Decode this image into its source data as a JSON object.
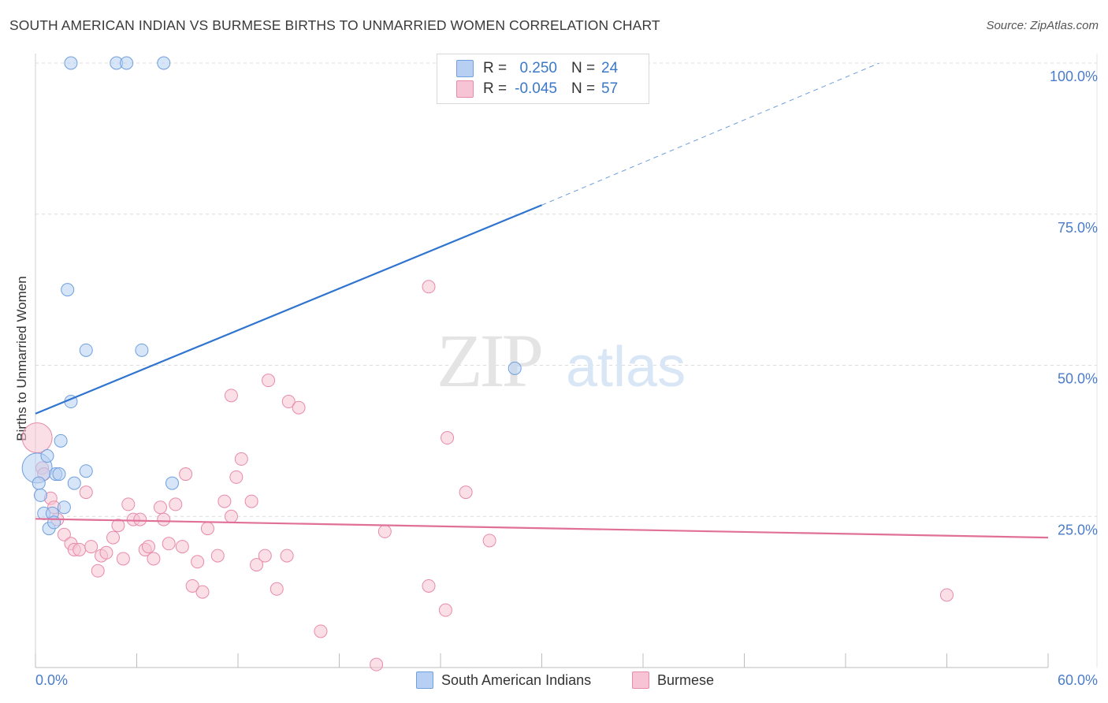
{
  "header": {
    "title": "SOUTH AMERICAN INDIAN VS BURMESE BIRTHS TO UNMARRIED WOMEN CORRELATION CHART",
    "source": "Source: ZipAtlas.com"
  },
  "watermark": {
    "zip": "ZIP",
    "atlas": "atlas"
  },
  "colors": {
    "blue_fill": "#b6cff2",
    "blue_stroke": "#6f9fde",
    "blue_line": "#2f74cf",
    "pink_fill": "#f6c4d4",
    "pink_stroke": "#e88aaa",
    "pink_line": "#e07098",
    "tick_label": "#4a7cc9",
    "grid": "#dcdcdc"
  },
  "legend_top": {
    "rows": [
      {
        "series": "South American Indians",
        "r_label": "R =",
        "r_value": "0.250",
        "n_label": "N =",
        "n_value": "24"
      },
      {
        "series": "Burmese",
        "r_label": "R =",
        "r_value": "-0.045",
        "n_label": "N =",
        "n_value": "57"
      }
    ]
  },
  "legend_bottom": {
    "items": [
      "South American Indians",
      "Burmese"
    ]
  },
  "chart_data": {
    "type": "scatter",
    "title": "SOUTH AMERICAN INDIAN VS BURMESE BIRTHS TO UNMARRIED WOMEN CORRELATION CHART",
    "xlabel": "",
    "ylabel": "Births to Unmarried Women",
    "xlim": [
      0,
      60
    ],
    "ylim": [
      0,
      100
    ],
    "x_tick_labels": [
      "0.0%",
      "60.0%"
    ],
    "y_tick_labels": [
      "25.0%",
      "50.0%",
      "75.0%",
      "100.0%"
    ],
    "y_ticks": [
      25,
      50,
      75,
      100
    ],
    "grid": true,
    "series": [
      {
        "name": "South American Indians",
        "points": [
          {
            "x": 0.1,
            "y": 33.0,
            "big": true
          },
          {
            "x": 0.2,
            "y": 30.5
          },
          {
            "x": 0.3,
            "y": 28.5
          },
          {
            "x": 0.5,
            "y": 25.5
          },
          {
            "x": 0.7,
            "y": 35.0
          },
          {
            "x": 0.8,
            "y": 23.0
          },
          {
            "x": 1.0,
            "y": 25.5
          },
          {
            "x": 1.1,
            "y": 24.0
          },
          {
            "x": 1.2,
            "y": 32.0
          },
          {
            "x": 1.4,
            "y": 32.0
          },
          {
            "x": 1.5,
            "y": 37.5
          },
          {
            "x": 1.7,
            "y": 26.5
          },
          {
            "x": 1.9,
            "y": 62.5
          },
          {
            "x": 2.1,
            "y": 44.0
          },
          {
            "x": 2.1,
            "y": 100.0
          },
          {
            "x": 2.3,
            "y": 30.5
          },
          {
            "x": 3.0,
            "y": 52.5
          },
          {
            "x": 3.0,
            "y": 32.5
          },
          {
            "x": 4.8,
            "y": 100.0
          },
          {
            "x": 5.4,
            "y": 100.0
          },
          {
            "x": 6.3,
            "y": 52.5
          },
          {
            "x": 7.6,
            "y": 100.0
          },
          {
            "x": 8.1,
            "y": 30.5
          },
          {
            "x": 28.4,
            "y": 49.5
          }
        ],
        "trend": {
          "x0": 0,
          "y0": 42.0,
          "x1": 30,
          "y1": 76.5,
          "dash_to_x": 50,
          "dash_to_y": 100
        }
      },
      {
        "name": "Burmese",
        "points": [
          {
            "x": 0.1,
            "y": 38.0,
            "big": true
          },
          {
            "x": 0.4,
            "y": 33.0
          },
          {
            "x": 0.5,
            "y": 32.0
          },
          {
            "x": 0.9,
            "y": 28.0
          },
          {
            "x": 1.1,
            "y": 26.5
          },
          {
            "x": 1.3,
            "y": 24.5
          },
          {
            "x": 1.7,
            "y": 22.0
          },
          {
            "x": 2.1,
            "y": 20.5
          },
          {
            "x": 2.3,
            "y": 19.5
          },
          {
            "x": 2.6,
            "y": 19.5
          },
          {
            "x": 3.0,
            "y": 29.0
          },
          {
            "x": 3.3,
            "y": 20.0
          },
          {
            "x": 3.7,
            "y": 16.0
          },
          {
            "x": 3.9,
            "y": 18.5
          },
          {
            "x": 4.2,
            "y": 19.0
          },
          {
            "x": 4.6,
            "y": 21.5
          },
          {
            "x": 4.9,
            "y": 23.5
          },
          {
            "x": 5.2,
            "y": 18.0
          },
          {
            "x": 5.5,
            "y": 27.0
          },
          {
            "x": 5.8,
            "y": 24.5
          },
          {
            "x": 6.2,
            "y": 24.5
          },
          {
            "x": 6.5,
            "y": 19.5
          },
          {
            "x": 6.7,
            "y": 20.0
          },
          {
            "x": 7.0,
            "y": 18.0
          },
          {
            "x": 7.4,
            "y": 26.5
          },
          {
            "x": 7.6,
            "y": 24.5
          },
          {
            "x": 7.9,
            "y": 20.5
          },
          {
            "x": 8.3,
            "y": 27.0
          },
          {
            "x": 8.7,
            "y": 20.0
          },
          {
            "x": 8.9,
            "y": 32.0
          },
          {
            "x": 9.3,
            "y": 13.5
          },
          {
            "x": 9.6,
            "y": 17.5
          },
          {
            "x": 9.9,
            "y": 12.5
          },
          {
            "x": 10.2,
            "y": 23.0
          },
          {
            "x": 10.8,
            "y": 18.5
          },
          {
            "x": 11.2,
            "y": 27.5
          },
          {
            "x": 11.6,
            "y": 25.0
          },
          {
            "x": 11.6,
            "y": 45.0
          },
          {
            "x": 11.9,
            "y": 31.5
          },
          {
            "x": 12.2,
            "y": 34.5
          },
          {
            "x": 12.8,
            "y": 27.5
          },
          {
            "x": 13.1,
            "y": 17.0
          },
          {
            "x": 13.6,
            "y": 18.5
          },
          {
            "x": 13.8,
            "y": 47.5
          },
          {
            "x": 14.3,
            "y": 13.0
          },
          {
            "x": 14.9,
            "y": 18.5
          },
          {
            "x": 15.0,
            "y": 44.0
          },
          {
            "x": 15.6,
            "y": 43.0
          },
          {
            "x": 16.9,
            "y": 6.0
          },
          {
            "x": 20.2,
            "y": 0.5
          },
          {
            "x": 20.7,
            "y": 22.5
          },
          {
            "x": 23.3,
            "y": 13.5
          },
          {
            "x": 23.3,
            "y": 63.0
          },
          {
            "x": 24.3,
            "y": 9.5
          },
          {
            "x": 24.4,
            "y": 38.0
          },
          {
            "x": 25.5,
            "y": 29.0
          },
          {
            "x": 26.9,
            "y": 21.0
          },
          {
            "x": 54.0,
            "y": 12.0
          }
        ],
        "trend": {
          "x0": 0,
          "y0": 24.6,
          "x1": 60,
          "y1": 21.5
        }
      }
    ]
  }
}
